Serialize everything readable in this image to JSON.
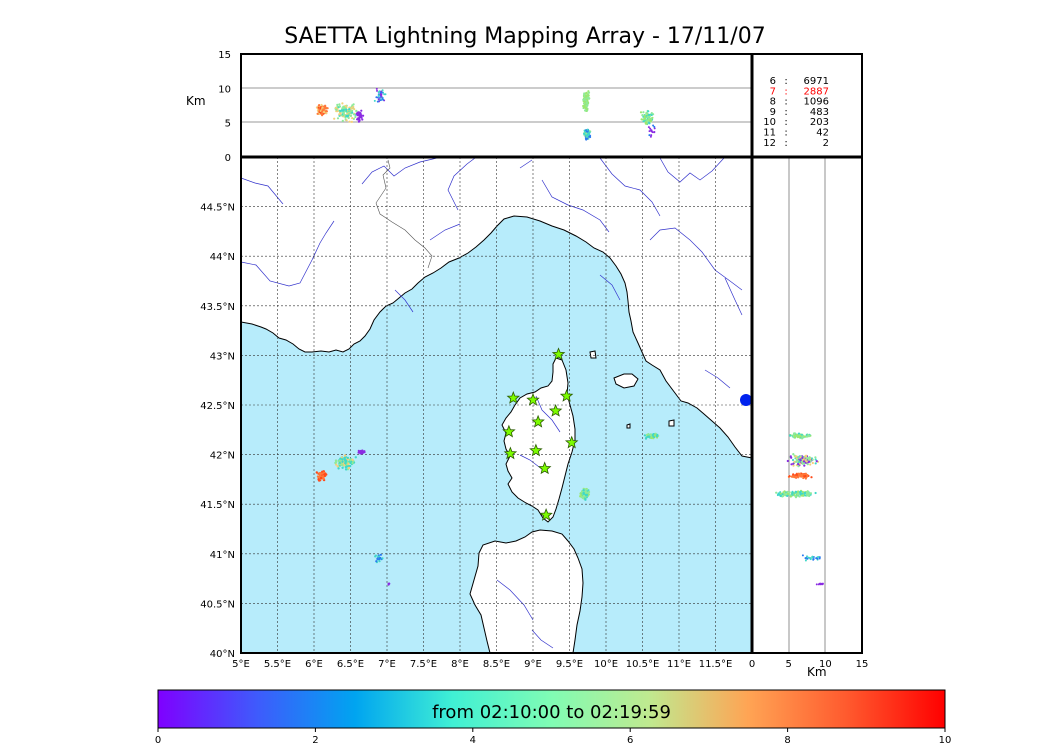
{
  "title": "SAETTA Lightning Mapping Array - 17/11/07",
  "altitude_axis": {
    "label": "Km",
    "ticks": [
      "0",
      "5",
      "10",
      "15"
    ]
  },
  "map": {
    "lon_ticks": [
      "5°E",
      "5.5°E",
      "6°E",
      "6.5°E",
      "7°E",
      "7.5°E",
      "8°E",
      "8.5°E",
      "9°E",
      "9.5°E",
      "10°E",
      "10.5°E",
      "11°E",
      "11.5°E"
    ],
    "lat_ticks": [
      "40°N",
      "40.5°N",
      "41°N",
      "41.5°N",
      "42°N",
      "42.5°N",
      "43°N",
      "43.5°N",
      "44°N",
      "44.5°N"
    ],
    "lon_range": [
      5,
      12
    ],
    "lat_range": [
      40,
      45
    ],
    "sea_color": "#b7ecfb",
    "land_color": "#ffffff",
    "river_color": "#3333cc",
    "station_color": "#7cfc00"
  },
  "station_counts": [
    {
      "stations": "6",
      "sep": ":",
      "count": "6971",
      "color": "#000000"
    },
    {
      "stations": "7",
      "sep": ":",
      "count": "2887",
      "color": "#ff0000"
    },
    {
      "stations": "8",
      "sep": ":",
      "count": "1096",
      "color": "#000000"
    },
    {
      "stations": "9",
      "sep": ":",
      "count": "483",
      "color": "#000000"
    },
    {
      "stations": "10",
      "sep": ":",
      "count": "203",
      "color": "#000000"
    },
    {
      "stations": "11",
      "sep": ":",
      "count": "42",
      "color": "#000000"
    },
    {
      "stations": "12",
      "sep": ":",
      "count": "2",
      "color": "#000000"
    }
  ],
  "stations": [
    {
      "lon": 9.35,
      "lat": 43.01
    },
    {
      "lon": 8.73,
      "lat": 42.57
    },
    {
      "lon": 9.0,
      "lat": 42.55
    },
    {
      "lon": 9.46,
      "lat": 42.59
    },
    {
      "lon": 9.31,
      "lat": 42.44
    },
    {
      "lon": 9.07,
      "lat": 42.33
    },
    {
      "lon": 8.67,
      "lat": 42.23
    },
    {
      "lon": 9.53,
      "lat": 42.12
    },
    {
      "lon": 8.69,
      "lat": 42.01
    },
    {
      "lon": 9.04,
      "lat": 42.04
    },
    {
      "lon": 9.16,
      "lat": 41.86
    },
    {
      "lon": 9.18,
      "lat": 41.39
    }
  ],
  "colorbar": {
    "label": "from 02:10:00 to 02:19:59",
    "ticks": [
      "0",
      "2",
      "4",
      "6",
      "8",
      "10"
    ],
    "colors": [
      "#7f00ff",
      "#3f5afc",
      "#00a4f0",
      "#40f0d4",
      "#80fcb4",
      "#c0e98f",
      "#ffa454",
      "#ff5a2e",
      "#ff0000"
    ]
  }
}
